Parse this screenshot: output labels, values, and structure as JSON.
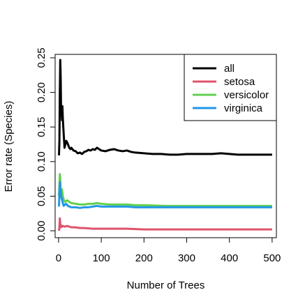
{
  "chart_data": {
    "type": "line",
    "title": "",
    "xlabel": "Number of Trees",
    "ylabel": "Error rate (Species)",
    "xlim": [
      -8,
      510
    ],
    "ylim": [
      -0.01,
      0.255
    ],
    "xticks": [
      0,
      100,
      200,
      300,
      400,
      500
    ],
    "xtick_labels": [
      "0",
      "100",
      "200",
      "300",
      "400",
      "500"
    ],
    "yticks": [
      0.0,
      0.05,
      0.1,
      0.15,
      0.2,
      0.25
    ],
    "ytick_labels": [
      "0.00",
      "0.05",
      "0.10",
      "0.15",
      "0.20",
      "0.25"
    ],
    "grid": false,
    "legend_position": "top-right",
    "series": [
      {
        "name": "all",
        "color": "#000000",
        "x": [
          1,
          2,
          3,
          4,
          5,
          6,
          7,
          8,
          9,
          10,
          12,
          14,
          16,
          18,
          20,
          22,
          25,
          28,
          30,
          35,
          40,
          45,
          50,
          55,
          60,
          65,
          70,
          75,
          80,
          85,
          90,
          95,
          100,
          110,
          120,
          130,
          140,
          150,
          160,
          170,
          180,
          200,
          220,
          240,
          260,
          280,
          300,
          320,
          340,
          360,
          380,
          400,
          420,
          440,
          460,
          480,
          500
        ],
        "values": [
          0.109,
          0.13,
          0.2,
          0.247,
          0.22,
          0.17,
          0.175,
          0.16,
          0.18,
          0.162,
          0.14,
          0.12,
          0.125,
          0.13,
          0.128,
          0.125,
          0.12,
          0.118,
          0.12,
          0.116,
          0.115,
          0.112,
          0.113,
          0.111,
          0.114,
          0.115,
          0.117,
          0.116,
          0.118,
          0.117,
          0.12,
          0.118,
          0.116,
          0.115,
          0.117,
          0.118,
          0.116,
          0.115,
          0.116,
          0.114,
          0.113,
          0.112,
          0.111,
          0.111,
          0.11,
          0.11,
          0.111,
          0.111,
          0.111,
          0.111,
          0.112,
          0.111,
          0.11,
          0.11,
          0.11,
          0.11,
          0.11
        ]
      },
      {
        "name": "setosa",
        "color": "#DF536B",
        "x": [
          1,
          2,
          3,
          4,
          5,
          6,
          8,
          10,
          15,
          20,
          30,
          40,
          50,
          60,
          80,
          100,
          130,
          160,
          200,
          250,
          300,
          350,
          400,
          450,
          500
        ],
        "values": [
          0.0,
          0.005,
          0.018,
          0.01,
          0.005,
          0.008,
          0.006,
          0.007,
          0.006,
          0.007,
          0.005,
          0.005,
          0.004,
          0.004,
          0.003,
          0.003,
          0.003,
          0.003,
          0.002,
          0.002,
          0.002,
          0.002,
          0.002,
          0.002,
          0.002
        ]
      },
      {
        "name": "versicolor",
        "color": "#61D04F",
        "x": [
          1,
          2,
          3,
          4,
          5,
          6,
          8,
          10,
          12,
          15,
          18,
          20,
          25,
          30,
          40,
          50,
          60,
          70,
          80,
          90,
          100,
          120,
          140,
          160,
          180,
          200,
          250,
          300,
          350,
          400,
          450,
          500
        ],
        "values": [
          0.05,
          0.065,
          0.082,
          0.075,
          0.06,
          0.055,
          0.06,
          0.05,
          0.045,
          0.042,
          0.043,
          0.044,
          0.042,
          0.04,
          0.039,
          0.038,
          0.038,
          0.039,
          0.039,
          0.04,
          0.039,
          0.038,
          0.038,
          0.038,
          0.037,
          0.037,
          0.036,
          0.036,
          0.036,
          0.036,
          0.036,
          0.036
        ]
      },
      {
        "name": "virginica",
        "color": "#2297E6",
        "x": [
          1,
          2,
          3,
          4,
          5,
          6,
          8,
          10,
          12,
          15,
          18,
          20,
          25,
          30,
          40,
          50,
          60,
          70,
          80,
          90,
          100,
          120,
          140,
          160,
          180,
          200,
          250,
          300,
          350,
          400,
          450,
          500
        ],
        "values": [
          0.035,
          0.055,
          0.07,
          0.06,
          0.058,
          0.05,
          0.045,
          0.04,
          0.036,
          0.038,
          0.039,
          0.037,
          0.035,
          0.034,
          0.034,
          0.033,
          0.034,
          0.034,
          0.035,
          0.036,
          0.035,
          0.035,
          0.035,
          0.035,
          0.034,
          0.034,
          0.034,
          0.034,
          0.034,
          0.034,
          0.034,
          0.034
        ]
      }
    ]
  }
}
